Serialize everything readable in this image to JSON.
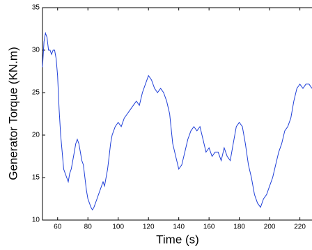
{
  "chart_data": {
    "type": "line",
    "xlabel": "Time (s)",
    "ylabel": "Generator Torque (KN.m)",
    "x": [
      50,
      51,
      52,
      53,
      54,
      55,
      56,
      57,
      58,
      59,
      60,
      61,
      62,
      63,
      64,
      65,
      66,
      67,
      68,
      69,
      70,
      71,
      72,
      73,
      74,
      75,
      76,
      77,
      78,
      79,
      80,
      81,
      82,
      83,
      84,
      85,
      86,
      87,
      88,
      89,
      90,
      91,
      92,
      93,
      94,
      95,
      96,
      97,
      98,
      100,
      102,
      104,
      106,
      108,
      110,
      112,
      114,
      116,
      118,
      120,
      122,
      124,
      126,
      128,
      130,
      132,
      134,
      136,
      138,
      140,
      142,
      144,
      146,
      148,
      150,
      152,
      154,
      156,
      158,
      160,
      162,
      164,
      166,
      168,
      170,
      172,
      174,
      176,
      178,
      180,
      182,
      184,
      186,
      188,
      190,
      192,
      194,
      196,
      198,
      200,
      202,
      204,
      206,
      208,
      210,
      212,
      214,
      216,
      218,
      220,
      222,
      224,
      226,
      228
    ],
    "series": [
      {
        "color": "#1f3fd8",
        "values": [
          28,
          31,
          32,
          31.5,
          30,
          30,
          29.5,
          30,
          30,
          29,
          27,
          23,
          20,
          18,
          16,
          15.5,
          15,
          14.5,
          15.5,
          16,
          17,
          18,
          19,
          19.5,
          19,
          18,
          17,
          16.5,
          15,
          13.5,
          12.5,
          12,
          11.5,
          11.2,
          11.5,
          12,
          12.5,
          13,
          13.5,
          14,
          14.5,
          14,
          15,
          16,
          17.5,
          19,
          20,
          20.5,
          21,
          21.5,
          21,
          22,
          22.5,
          23,
          23.5,
          24,
          23.5,
          25,
          26,
          27,
          26.5,
          25.5,
          25,
          25.5,
          25,
          24,
          22.5,
          19,
          17.5,
          16,
          16.5,
          18,
          19.5,
          20.5,
          21,
          20.5,
          21,
          19.5,
          18,
          18.5,
          17.5,
          18,
          18,
          17,
          18.5,
          17.5,
          17,
          19,
          21,
          21.5,
          21,
          19,
          16.5,
          15,
          13,
          12,
          11.5,
          12.5,
          13,
          14,
          15,
          16.5,
          18,
          19,
          20.5,
          21,
          22,
          24,
          25.5,
          26,
          25.5,
          26,
          26,
          25.5
        ]
      }
    ],
    "xlim": [
      50,
      228
    ],
    "ylim": [
      10,
      35
    ],
    "xticks": [
      60,
      80,
      100,
      120,
      140,
      160,
      180,
      200,
      220
    ],
    "yticks": [
      10,
      15,
      20,
      25,
      30,
      35
    ]
  }
}
